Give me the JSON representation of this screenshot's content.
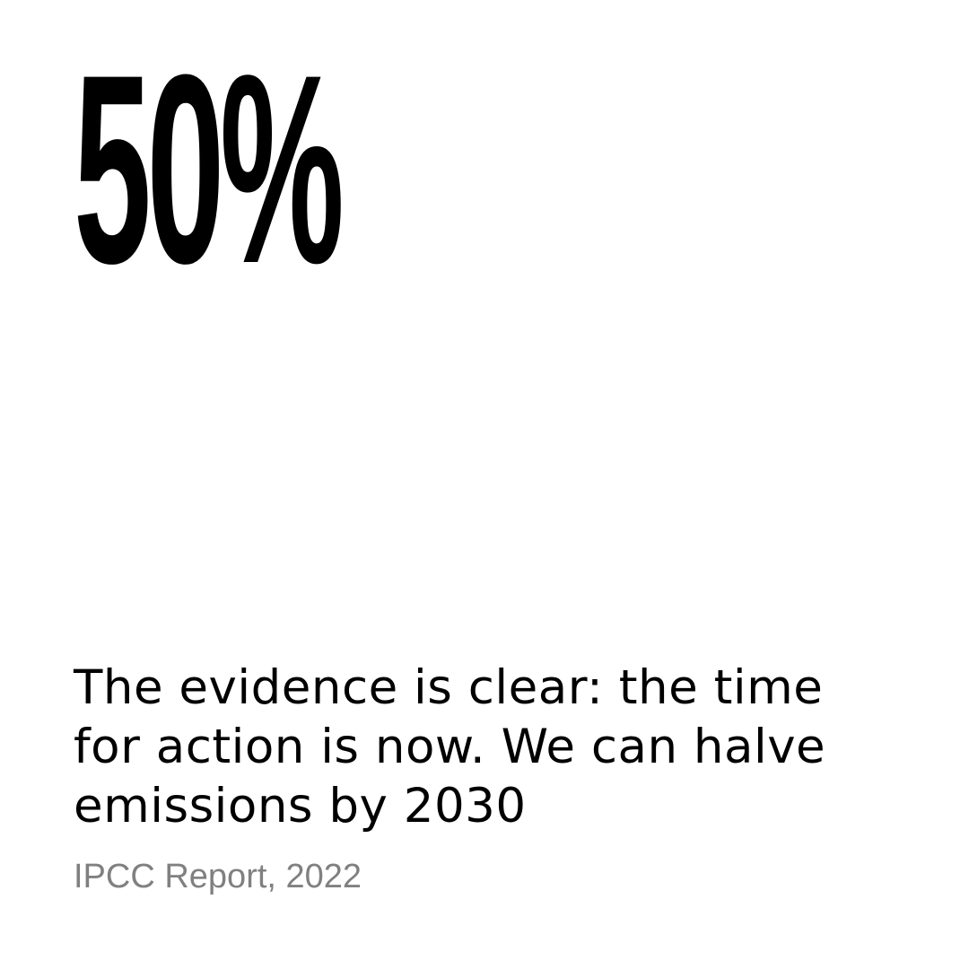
{
  "statistic": {
    "value": "50%"
  },
  "quote": {
    "text": "The evidence is clear: the time for action is now. We can halve emissions by 2030"
  },
  "source": {
    "text": "IPCC Report, 2022"
  },
  "colors": {
    "background": "#ffffff",
    "text": "#000000",
    "source_text": "#808080"
  }
}
